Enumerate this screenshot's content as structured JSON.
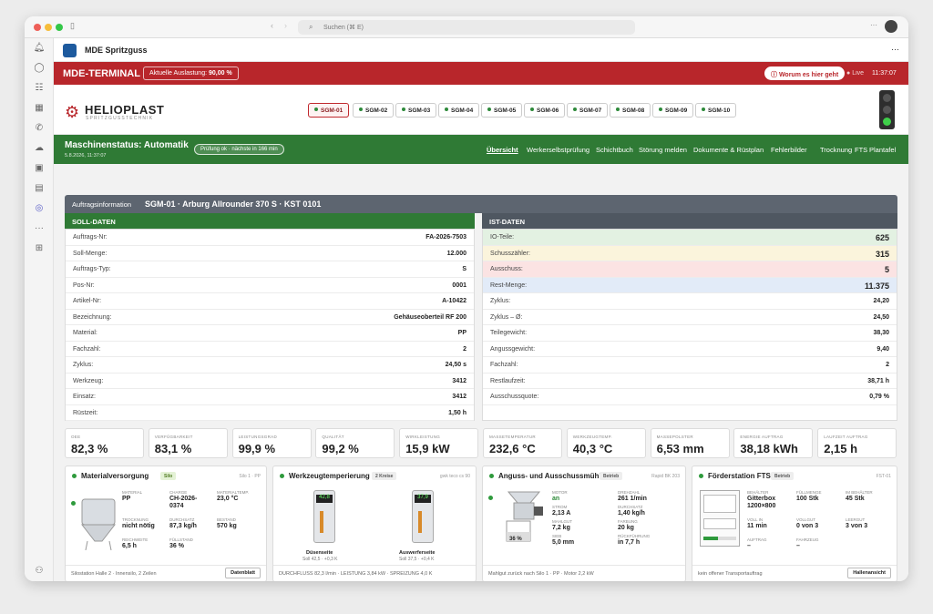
{
  "browser": {
    "search_placeholder": "Suchen (⌘ E)"
  },
  "app": {
    "title": "MDE Spritzguss"
  },
  "terminal": {
    "title": "MDE-TERMINAL",
    "auslastung_label": "Aktuelle Auslastung:",
    "auslastung_value": "90,00 %",
    "help_label": "Worum es hier geht",
    "live_label": "Live",
    "time": "11:37:07"
  },
  "brand": {
    "name": "HELIOPLAST",
    "tagline": "SPRITZGUSSTECHNIK"
  },
  "machines": [
    "SGM-01",
    "SGM-02",
    "SGM-03",
    "SGM-04",
    "SGM-05",
    "SGM-06",
    "SGM-07",
    "SGM-08",
    "SGM-09",
    "SGM-10"
  ],
  "status": {
    "title": "Maschinenstatus: Automatik",
    "timestamp": "5.8.2026, 11:37:07",
    "check": "Prüfung ok · nächste in 166 min"
  },
  "nav": [
    "Übersicht",
    "Werkerselbstprüfung",
    "Schichtbuch",
    "Störung melden",
    "Dokumente & Rüstplan",
    "Fehlerbilder",
    "Trocknung",
    "FTS",
    "Plantafel"
  ],
  "order": {
    "label": "Auftragsinformation",
    "machine": "SGM-01 · Arburg Allrounder 370 S · KST 0101"
  },
  "soll": {
    "header": "SOLL-DATEN",
    "rows": [
      {
        "k": "Auftrags-Nr:",
        "v": "FA-2026-7503"
      },
      {
        "k": "Soll-Menge:",
        "v": "12.000"
      },
      {
        "k": "Auftrags-Typ:",
        "v": "S"
      },
      {
        "k": "Pos-Nr:",
        "v": "0001"
      },
      {
        "k": "Artikel-Nr:",
        "v": "A-10422"
      },
      {
        "k": "Bezeichnung:",
        "v": "Gehäuseoberteil RF 200"
      },
      {
        "k": "Material:",
        "v": "PP"
      },
      {
        "k": "Fachzahl:",
        "v": "2"
      },
      {
        "k": "Zyklus:",
        "v": "24,50 s"
      },
      {
        "k": "Werkzeug:",
        "v": "3412"
      },
      {
        "k": "Einsatz:",
        "v": "3412"
      },
      {
        "k": "Rüstzeit:",
        "v": "1,50 h"
      }
    ]
  },
  "ist": {
    "header": "IST-DATEN",
    "rows": [
      {
        "k": "IO-Teile:",
        "v": "625",
        "bg": "#e3f1e2"
      },
      {
        "k": "Schusszähler:",
        "v": "315",
        "bg": "#fbf4dc"
      },
      {
        "k": "Ausschuss:",
        "v": "5",
        "bg": "#fbe3e3"
      },
      {
        "k": "Rest-Menge:",
        "v": "11.375",
        "bg": "#e2ebf8"
      },
      {
        "k": "Zyklus:",
        "v": "24,20"
      },
      {
        "k": "Zyklus – Ø:",
        "v": "24,50"
      },
      {
        "k": "Teilegewicht:",
        "v": "38,30"
      },
      {
        "k": "Angussgewicht:",
        "v": "9,40"
      },
      {
        "k": "Fachzahl:",
        "v": "2"
      },
      {
        "k": "Restlaufzeit:",
        "v": "38,71 h"
      },
      {
        "k": "Ausschussquote:",
        "v": "0,79 %"
      }
    ]
  },
  "kpis": [
    {
      "l": "OEE",
      "v": "82,3 %"
    },
    {
      "l": "VERFÜGBARKEIT",
      "v": "83,1 %"
    },
    {
      "l": "LEISTUNGSGRAD",
      "v": "99,9 %"
    },
    {
      "l": "QUALITÄT",
      "v": "99,2 %"
    },
    {
      "l": "WIRKLEISTUNG",
      "v": "15,9 kW"
    },
    {
      "l": "MASSETEMPERATUR",
      "v": "232,6 °C"
    },
    {
      "l": "WERKZEUGTEMP.",
      "v": "40,3 °C"
    },
    {
      "l": "MASSEPOLSTER",
      "v": "6,53 mm"
    },
    {
      "l": "ENERGIE AUFTRAG",
      "v": "38,18 kWh"
    },
    {
      "l": "LAUFZEIT AUFTRAG",
      "v": "2,15 h"
    }
  ],
  "p1": {
    "title": "Materialversorgung",
    "badge": "Silo",
    "ref": "Silo 1 · PP",
    "f": [
      {
        "l": "MATERIAL",
        "v": "PP"
      },
      {
        "l": "CHARGE",
        "v": "CH-2026-\n0374"
      },
      {
        "l": "MATERIALTEMP.",
        "v": "23,0 °C"
      },
      {
        "l": "TROCKNUNG",
        "v": "nicht nötig"
      },
      {
        "l": "DURCHSATZ",
        "v": "87,3 kg/h"
      },
      {
        "l": "BESTAND",
        "v": "570 kg"
      },
      {
        "l": "REICHWEITE",
        "v": "6,5 h"
      },
      {
        "l": "FÜLLSTAND",
        "v": "36 %"
      }
    ],
    "foot": "Silostation Halle 2 · Innensilo, 2 Zeilen",
    "button": "Datenblatt"
  },
  "p2": {
    "title": "Werkzeugtemperierung",
    "badge": "2 Kreise",
    "ref": "gwk teco cs 90",
    "d1_val": "42,8",
    "d2_val": "37,9",
    "d1_name": "Düsenseite",
    "d1_sub": "Soll 42,5 · +0,3 K",
    "d2_name": "Auswerferseite",
    "d2_sub": "Soll 37,5 · +0,4 K",
    "foot": "DURCHFLUSS 82,3 l/min · LEISTUNG 3,84 kW · SPREIZUNG 4,0 K"
  },
  "p3": {
    "title": "Anguss- und Ausschussmühle",
    "badge": "Betrieb",
    "ref": "Rapid BK 203",
    "fill": "36 %",
    "f": [
      {
        "l": "MOTOR",
        "v": "an",
        "c": "#2e8a3a"
      },
      {
        "l": "DREHZAHL",
        "v": "261 1/min"
      },
      {
        "l": "STROM",
        "v": "2,13 A"
      },
      {
        "l": "DURCHSATZ",
        "v": "1,40 kg/h"
      },
      {
        "l": "MAHLGUT",
        "v": "7,2 kg"
      },
      {
        "l": "FARBUNG",
        "v": "20 kg"
      },
      {
        "l": "SIEB",
        "v": "5,0 mm"
      },
      {
        "l": "RÜCKFÜHRUNG",
        "v": "in 7,7 h"
      }
    ],
    "foot": "Mahlgut zurück nach Silo 1 · PP · Motor 2,2 kW"
  },
  "p4": {
    "title": "Förderstation FTS",
    "badge": "Betrieb",
    "ref": "FST-01",
    "f": [
      {
        "l": "BEHÄLTER",
        "v": "Gitterbox\n1200×800"
      },
      {
        "l": "FÜLLMENGE",
        "v": "100 Stk"
      },
      {
        "l": "IM BEHÄLTER",
        "v": "45 Stk"
      },
      {
        "l": "VOLL IN",
        "v": "11 min"
      },
      {
        "l": "VOLLGUT",
        "v": "0 von 3"
      },
      {
        "l": "LEERGUT",
        "v": "3 von 3"
      },
      {
        "l": "AUFTRAG",
        "v": "–"
      },
      {
        "l": "FAHRZEUG",
        "v": "–"
      }
    ],
    "foot": "kein offener Transportauftrag",
    "button": "Hallenansicht"
  }
}
